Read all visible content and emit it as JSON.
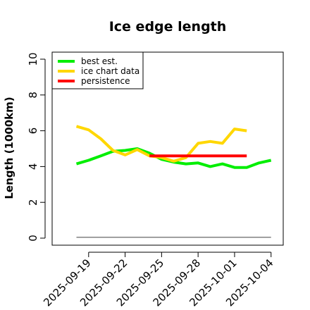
{
  "chart_data": {
    "type": "line",
    "title": "Ice edge length",
    "xlabel": "",
    "ylabel": "Length (1000km)",
    "ylim": [
      0,
      10
    ],
    "xlim": [
      "2025-09-16",
      "2025-10-05"
    ],
    "x_ticks": [
      "2025-09-19",
      "2025-09-22",
      "2025-09-25",
      "2025-09-28",
      "2025-10-01",
      "2025-10-04"
    ],
    "y_ticks": [
      0,
      2,
      4,
      6,
      8,
      10
    ],
    "grid": false,
    "legend_position": "top-left",
    "series": [
      {
        "name": "best est.",
        "color": "#00ee00",
        "x": [
          "2025-09-18",
          "2025-09-19",
          "2025-09-20",
          "2025-09-21",
          "2025-09-22",
          "2025-09-23",
          "2025-09-24",
          "2025-09-25",
          "2025-09-26",
          "2025-09-27",
          "2025-09-28",
          "2025-09-29",
          "2025-09-30",
          "2025-10-01",
          "2025-10-02",
          "2025-10-03",
          "2025-10-04"
        ],
        "y": [
          4.15,
          4.35,
          4.6,
          4.85,
          4.9,
          5.0,
          4.75,
          4.4,
          4.25,
          4.15,
          4.2,
          4.0,
          4.15,
          3.95,
          3.95,
          4.2,
          4.35
        ]
      },
      {
        "name": "ice chart data",
        "color": "#ffd700",
        "x": [
          "2025-09-18",
          "2025-09-19",
          "2025-09-20",
          "2025-09-21",
          "2025-09-22",
          "2025-09-23",
          "2025-09-24",
          "2025-09-25",
          "2025-09-26",
          "2025-09-27",
          "2025-09-28",
          "2025-09-29",
          "2025-09-30",
          "2025-10-01",
          "2025-10-02"
        ],
        "y": [
          6.25,
          6.05,
          5.55,
          4.9,
          4.65,
          4.95,
          4.6,
          4.5,
          4.3,
          4.5,
          5.3,
          5.4,
          5.3,
          6.1,
          6.0
        ]
      },
      {
        "name": "persistence",
        "color": "#ff0000",
        "x": [
          "2025-09-24",
          "2025-10-02"
        ],
        "y": [
          4.6,
          4.6
        ]
      },
      {
        "name": "",
        "color": "#808080",
        "x": [
          "2025-09-18",
          "2025-10-04"
        ],
        "y": [
          0.05,
          0.05
        ]
      }
    ]
  }
}
